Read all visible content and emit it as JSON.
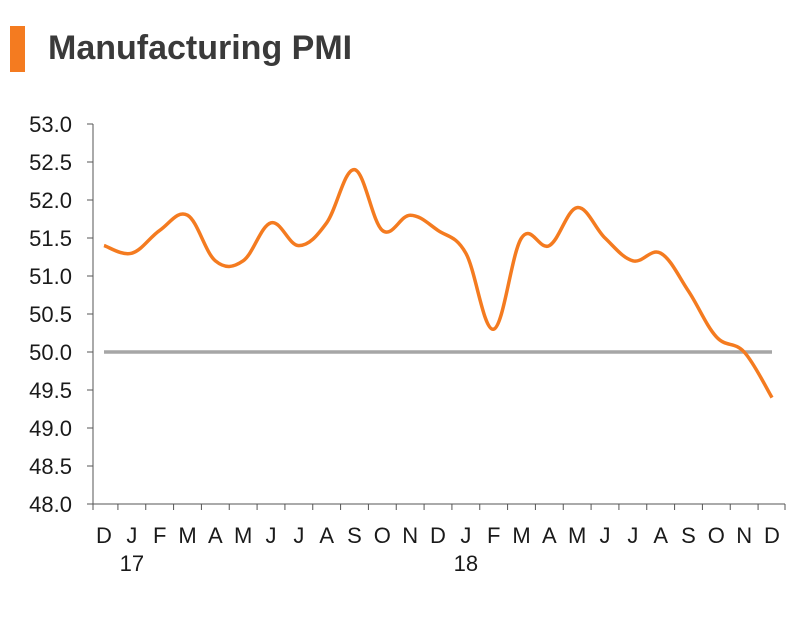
{
  "chart_data": {
    "type": "line",
    "title": "Manufacturing PMI",
    "xlabel": "",
    "ylabel": "",
    "ylim": [
      48.0,
      53.0
    ],
    "yticks": [
      "53.0",
      "52.5",
      "52.0",
      "51.5",
      "51.0",
      "50.5",
      "50.0",
      "49.5",
      "49.0",
      "48.5",
      "48.0"
    ],
    "categories": [
      "D",
      "J",
      "F",
      "M",
      "A",
      "M",
      "J",
      "J",
      "A",
      "S",
      "O",
      "N",
      "D",
      "J",
      "F",
      "M",
      "A",
      "M",
      "J",
      "J",
      "A",
      "S",
      "O",
      "N",
      "D"
    ],
    "year_labels": [
      {
        "index": 1,
        "label": "17"
      },
      {
        "index": 13,
        "label": "18"
      }
    ],
    "series": [
      {
        "name": "Manufacturing PMI",
        "color": "#f47b20",
        "values": [
          51.4,
          51.3,
          51.6,
          51.8,
          51.2,
          51.2,
          51.7,
          51.4,
          51.7,
          52.4,
          51.6,
          51.8,
          51.6,
          51.3,
          50.3,
          51.5,
          51.4,
          51.9,
          51.5,
          51.2,
          51.3,
          50.8,
          50.2,
          50.0,
          49.4
        ]
      }
    ],
    "reference_line": {
      "value": 50.0,
      "color": "#a6a6a6"
    },
    "grid": false
  }
}
